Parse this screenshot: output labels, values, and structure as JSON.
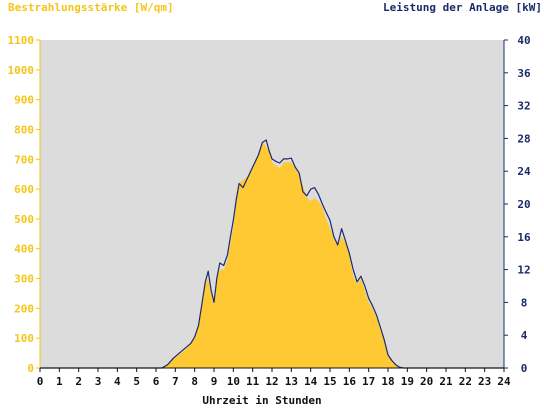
{
  "chart_data": {
    "type": "area",
    "left_axis_title": "Bestrahlungsstärke [W/qm]",
    "right_axis_title": "Leistung der Anlage [kW]",
    "xlabel": "Uhrzeit in Stunden",
    "xlim": [
      0,
      24
    ],
    "x_ticks": [
      "0",
      "1",
      "2",
      "3",
      "4",
      "5",
      "6",
      "7",
      "8",
      "9",
      "10",
      "11",
      "12",
      "13",
      "14",
      "15",
      "16",
      "17",
      "18",
      "19",
      "20",
      "21",
      "22",
      "23",
      "24"
    ],
    "y_left_lim": [
      0,
      1100
    ],
    "y_left_ticks": [
      "0",
      "100",
      "200",
      "300",
      "400",
      "500",
      "600",
      "700",
      "800",
      "900",
      "1000",
      "1100"
    ],
    "y_right_lim": [
      0,
      40
    ],
    "y_right_ticks": [
      "0",
      "4",
      "8",
      "12",
      "16",
      "20",
      "24",
      "28",
      "32",
      "36",
      "40"
    ],
    "grid": false,
    "colors": {
      "irradiance": "#ffc933",
      "power": "#1a2b6d",
      "plot_bg": "#dcdcdc",
      "left_axis_text": "#f5c518",
      "right_axis_text": "#1a2b6d"
    },
    "series": [
      {
        "name": "Bestrahlungsstärke [W/qm]",
        "axis": "left",
        "style": "filled-area",
        "x": [
          0,
          6.3,
          6.6,
          6.9,
          7.2,
          7.5,
          7.8,
          8.0,
          8.2,
          8.4,
          8.55,
          8.7,
          8.85,
          9.0,
          9.15,
          9.3,
          9.5,
          9.7,
          9.85,
          10.0,
          10.15,
          10.3,
          10.5,
          10.7,
          10.9,
          11.1,
          11.3,
          11.5,
          11.7,
          11.85,
          12.0,
          12.2,
          12.4,
          12.6,
          12.8,
          13.0,
          13.2,
          13.4,
          13.6,
          13.8,
          14.0,
          14.2,
          14.4,
          14.6,
          14.8,
          15.0,
          15.2,
          15.4,
          15.6,
          15.8,
          16.0,
          16.2,
          16.4,
          16.6,
          16.8,
          17.0,
          17.2,
          17.4,
          17.6,
          17.8,
          18.0,
          18.2,
          18.4,
          18.6,
          18.8,
          19.0,
          24
        ],
        "y": [
          0,
          0,
          10,
          30,
          45,
          60,
          80,
          100,
          140,
          220,
          280,
          300,
          250,
          210,
          300,
          330,
          330,
          360,
          420,
          470,
          560,
          620,
          630,
          640,
          660,
          690,
          720,
          760,
          740,
          730,
          690,
          680,
          670,
          690,
          690,
          690,
          670,
          650,
          610,
          570,
          560,
          570,
          560,
          540,
          500,
          470,
          430,
          410,
          440,
          420,
          380,
          310,
          280,
          300,
          260,
          220,
          200,
          170,
          130,
          90,
          40,
          25,
          10,
          3,
          0,
          0,
          0
        ]
      },
      {
        "name": "Leistung der Anlage [kW]",
        "axis": "right",
        "style": "line",
        "x": [
          0,
          6.3,
          6.6,
          6.9,
          7.2,
          7.5,
          7.8,
          8.0,
          8.2,
          8.4,
          8.55,
          8.7,
          8.85,
          9.0,
          9.15,
          9.3,
          9.5,
          9.7,
          9.85,
          10.0,
          10.15,
          10.3,
          10.5,
          10.7,
          10.9,
          11.1,
          11.3,
          11.5,
          11.7,
          11.85,
          12.0,
          12.2,
          12.4,
          12.6,
          12.8,
          13.0,
          13.2,
          13.4,
          13.6,
          13.8,
          14.0,
          14.2,
          14.4,
          14.6,
          14.8,
          15.0,
          15.2,
          15.4,
          15.6,
          15.8,
          16.0,
          16.2,
          16.4,
          16.6,
          16.8,
          17.0,
          17.2,
          17.4,
          17.6,
          17.8,
          18.0,
          18.2,
          18.4,
          18.6,
          18.8,
          19.0,
          24
        ],
        "y": [
          0,
          0,
          0.4,
          1.2,
          1.8,
          2.4,
          3.0,
          3.8,
          5.2,
          8.2,
          10.5,
          11.8,
          9.5,
          8.0,
          11.0,
          12.8,
          12.5,
          13.8,
          16.0,
          18.0,
          20.5,
          22.5,
          22.0,
          23.0,
          24.0,
          25.0,
          26.0,
          27.5,
          27.8,
          26.5,
          25.5,
          25.2,
          25.0,
          25.5,
          25.5,
          25.6,
          24.5,
          23.8,
          21.5,
          21.0,
          21.8,
          22.0,
          21.2,
          20.0,
          19.0,
          18.0,
          16.0,
          15.0,
          17.0,
          15.5,
          14.0,
          12.0,
          10.5,
          11.2,
          10.0,
          8.5,
          7.6,
          6.5,
          5.0,
          3.5,
          1.6,
          0.9,
          0.4,
          0.1,
          0,
          0,
          0
        ]
      }
    ]
  }
}
